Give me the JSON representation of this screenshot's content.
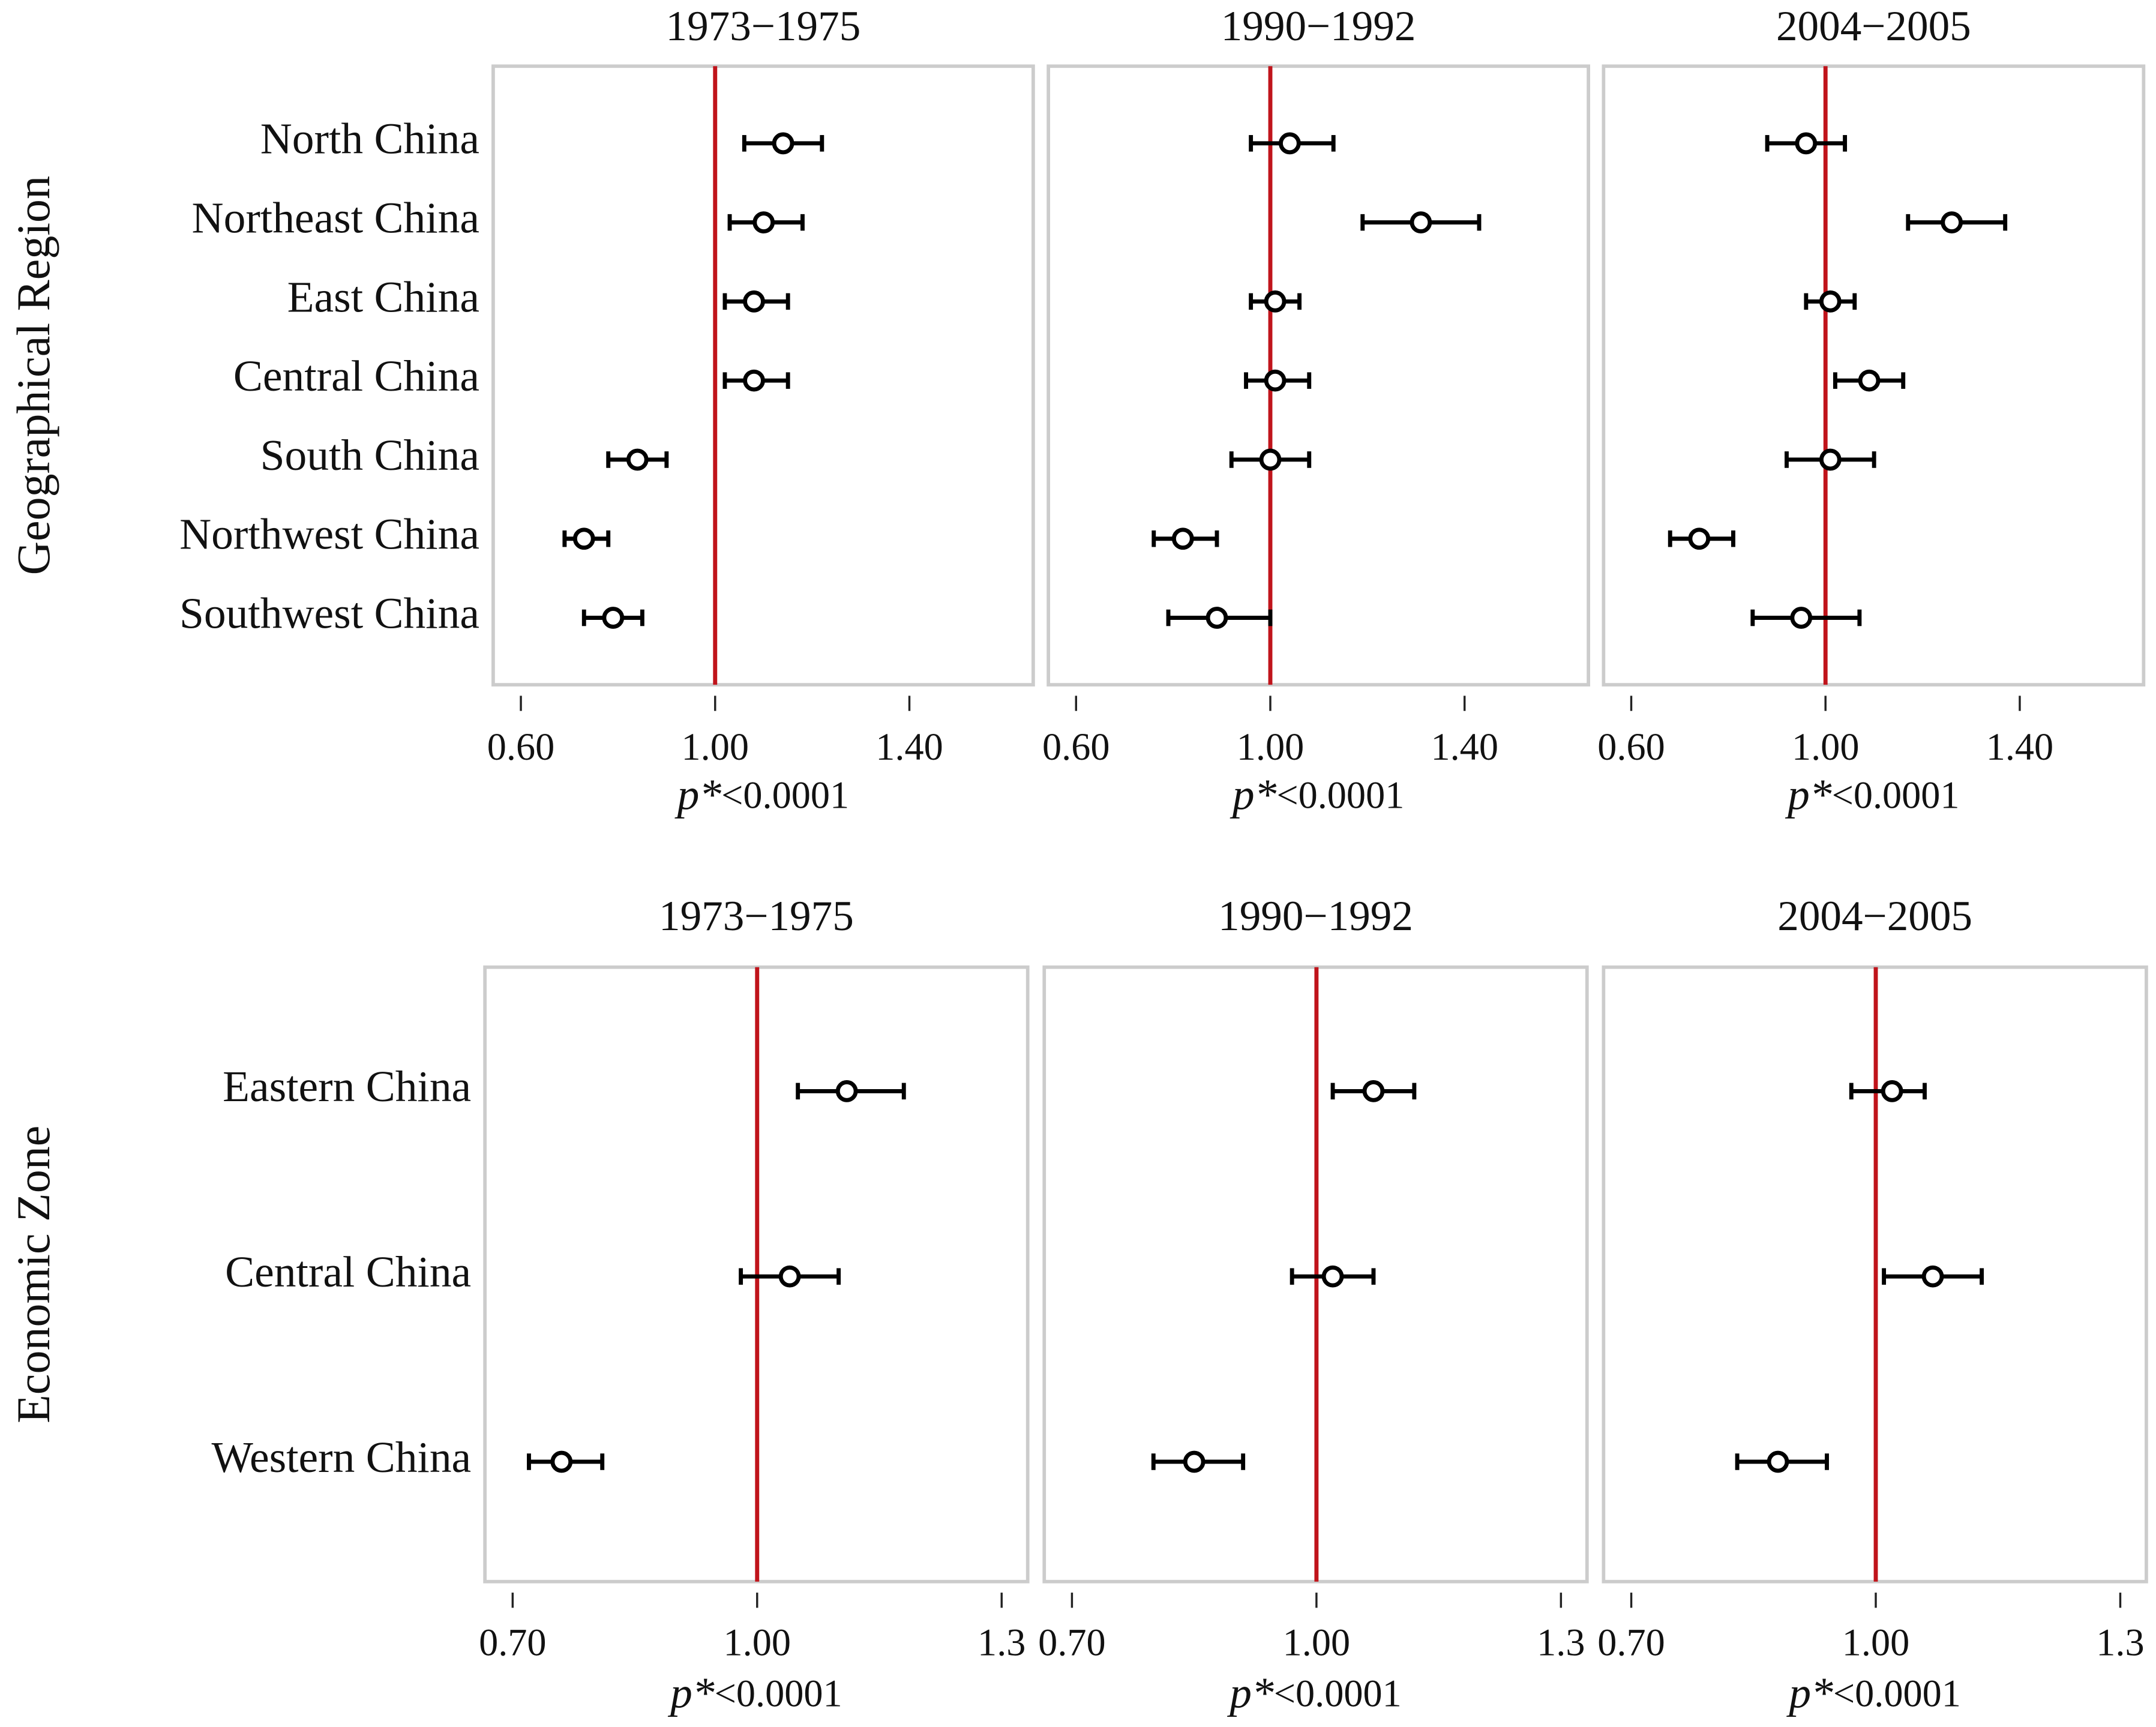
{
  "chart_data": [
    {
      "type": "forest",
      "title": "1973−1975",
      "ylabel": "Geographical Region",
      "categories": [
        "North China",
        "Northeast China",
        "East China",
        "Central China",
        "South China",
        "Northwest China",
        "Southwest China"
      ],
      "values": [
        1.14,
        1.1,
        1.08,
        1.08,
        0.84,
        0.73,
        0.79
      ],
      "lower": [
        1.06,
        1.03,
        1.02,
        1.02,
        0.78,
        0.69,
        0.73
      ],
      "upper": [
        1.22,
        1.18,
        1.15,
        1.15,
        0.9,
        0.78,
        0.85
      ],
      "xlim": [
        0.543,
        1.655
      ],
      "xticks": [
        {
          "value": 0.6,
          "label": "0.60"
        },
        {
          "value": 1,
          "label": "1.00"
        },
        {
          "value": 1.4,
          "label": "1.40"
        }
      ],
      "reference_line": 1,
      "xlabel": {
        "symbol": "p*",
        "text": "<0.0001"
      },
      "marker_color": "#000000",
      "reference_color": "#c0141b"
    },
    {
      "type": "forest",
      "title": "1990−1992",
      "categories": [
        null,
        null,
        null,
        null,
        null,
        null,
        null
      ],
      "values": [
        1.04,
        1.31,
        1.01,
        1.01,
        1.0,
        0.82,
        0.89
      ],
      "lower": [
        0.96,
        1.19,
        0.96,
        0.95,
        0.92,
        0.76,
        0.79
      ],
      "upper": [
        1.13,
        1.43,
        1.06,
        1.08,
        1.08,
        0.89,
        1.0
      ],
      "xlim": [
        0.543,
        1.655
      ],
      "xticks": [
        {
          "value": 0.6,
          "label": "0.60"
        },
        {
          "value": 1,
          "label": "1.00"
        },
        {
          "value": 1.4,
          "label": "1.40"
        }
      ],
      "reference_line": 1,
      "xlabel": {
        "symbol": "p*",
        "text": "<0.0001"
      },
      "marker_color": "#000000",
      "reference_color": "#c0141b"
    },
    {
      "type": "forest",
      "title": "2004−2005",
      "categories": [
        null,
        null,
        null,
        null,
        null,
        null,
        null
      ],
      "values": [
        0.96,
        1.26,
        1.01,
        1.09,
        1.01,
        0.74,
        0.95
      ],
      "lower": [
        0.88,
        1.17,
        0.96,
        1.02,
        0.92,
        0.68,
        0.85
      ],
      "upper": [
        1.04,
        1.37,
        1.06,
        1.16,
        1.1,
        0.81,
        1.07
      ],
      "xlim": [
        0.543,
        1.655
      ],
      "xticks": [
        {
          "value": 0.6,
          "label": "0.60"
        },
        {
          "value": 1,
          "label": "1.00"
        },
        {
          "value": 1.4,
          "label": "1.40"
        }
      ],
      "reference_line": 1,
      "xlabel": {
        "symbol": "p*",
        "text": "<0.0001"
      },
      "marker_color": "#000000",
      "reference_color": "#c0141b"
    },
    {
      "type": "forest",
      "title": "1973−1975",
      "ylabel": "Economic Zone",
      "categories": [
        "Eastern China",
        "Central China",
        "Western China"
      ],
      "values": [
        1.11,
        1.04,
        0.76
      ],
      "lower": [
        1.05,
        0.98,
        0.72
      ],
      "upper": [
        1.18,
        1.1,
        0.81
      ],
      "xlim": [
        0.666,
        1.332
      ],
      "xticks": [
        {
          "value": 0.7,
          "label": "0.70"
        },
        {
          "value": 1,
          "label": "1.00"
        },
        1.3
      ],
      "reference_line": 1,
      "xlabel": {
        "symbol": "p*",
        "text": "<0.0001"
      },
      "marker_color": "#000000",
      "reference_color": "#c0141b"
    },
    {
      "type": "forest",
      "title": "1990−1992",
      "categories": [
        null,
        null,
        null
      ],
      "values": [
        1.07,
        1.02,
        0.85
      ],
      "lower": [
        1.02,
        0.97,
        0.8
      ],
      "upper": [
        1.12,
        1.07,
        0.91
      ],
      "xlim": [
        0.666,
        1.332
      ],
      "xticks": [
        {
          "value": 0.7,
          "label": "0.70"
        },
        {
          "value": 1,
          "label": "1.00"
        },
        1.3
      ],
      "reference_line": 1,
      "xlabel": {
        "symbol": "p*",
        "text": "<0.0001"
      },
      "marker_color": "#000000",
      "reference_color": "#c0141b"
    },
    {
      "type": "forest",
      "title": "2004−2005",
      "categories": [
        null,
        null,
        null
      ],
      "values": [
        1.02,
        1.07,
        0.88
      ],
      "lower": [
        0.97,
        1.01,
        0.83
      ],
      "upper": [
        1.06,
        1.13,
        0.94
      ],
      "xlim": [
        0.666,
        1.332
      ],
      "xticks": [
        {
          "value": 0.7,
          "label": "0.70"
        },
        {
          "value": 1,
          "label": "1.00"
        },
        1.3
      ],
      "reference_line": 1,
      "xlabel": {
        "symbol": "p*",
        "text": "<0.0001"
      },
      "marker_color": "#000000",
      "reference_color": "#c0141b"
    }
  ]
}
